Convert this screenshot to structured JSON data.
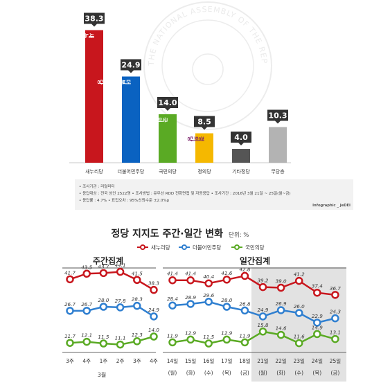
{
  "chart_data": [
    {
      "type": "bar",
      "categories": [
        "새누리당",
        "더불어민주당",
        "국민의당",
        "정의당",
        "기타정당",
        "무당층"
      ],
      "values": [
        38.3,
        24.9,
        14.0,
        8.5,
        4.0,
        10.3
      ],
      "value_labels": [
        "38.3",
        "24.9",
        "14.0",
        "8.5",
        "4.0",
        "10.3"
      ],
      "colors": [
        "#c8161d",
        "#0a62c1",
        "#5aaa24",
        "#f5b800",
        "#555555",
        "#b3b3b3"
      ],
      "logo_text": [
        "새누리당",
        "더불어민주당",
        "국민의당",
        "정의당"
      ],
      "ylim": [
        0,
        40
      ]
    },
    {
      "type": "line",
      "subtitle": "주간집계",
      "categories": [
        "3주",
        "4주",
        "1주",
        "2주",
        "3주",
        "4주"
      ],
      "month_label": "3월",
      "series": [
        {
          "name": "새누리당",
          "color": "#c8161d",
          "values": [
            41.7,
            43.5,
            43.7,
            44.1,
            41.5,
            38.3
          ]
        },
        {
          "name": "더불어민주당",
          "color": "#2f7fd0",
          "values": [
            26.7,
            26.7,
            28.0,
            27.8,
            28.3,
            24.9
          ]
        },
        {
          "name": "국민의당",
          "color": "#5aaa24",
          "values": [
            11.7,
            12.1,
            11.5,
            11.1,
            12.3,
            14.0
          ]
        }
      ]
    },
    {
      "type": "line",
      "subtitle": "일간집계",
      "categories": [
        "14일",
        "15일",
        "16일",
        "17일",
        "18일",
        "21일",
        "22일",
        "23일",
        "24일",
        "25일"
      ],
      "weekdays": [
        "(월)",
        "(화)",
        "(수)",
        "(목)",
        "(금)",
        "(월)",
        "(화)",
        "(수)",
        "(목)",
        "(금)"
      ],
      "series": [
        {
          "name": "새누리당",
          "color": "#c8161d",
          "values": [
            41.4,
            41.4,
            40.4,
            41.6,
            42.8,
            39.2,
            39.0,
            41.2,
            37.4,
            36.7
          ]
        },
        {
          "name": "더불어민주당",
          "color": "#2f7fd0",
          "values": [
            28.4,
            28.9,
            29.6,
            28.0,
            26.8,
            24.9,
            26.9,
            26.0,
            22.9,
            24.3
          ]
        },
        {
          "name": "국민의당",
          "color": "#5aaa24",
          "values": [
            11.9,
            12.9,
            11.5,
            12.9,
            11.9,
            15.8,
            14.6,
            11.6,
            14.9,
            13.1
          ]
        }
      ]
    }
  ],
  "notes": {
    "line1": "• 조사기관 : 리얼미터",
    "line2": "• 응답대상 : 전국 성인 2522명  • 조사방법 : 유무선 RDD 전화면접 및 자동응답  • 조사기간 : 2016년 3월 21일 ~ 25일(월~금)",
    "line3": "• 응답률 : 4.7%  • 표집오차 : 95%신뢰수준 ±2.0%p",
    "credit": "Infographic _ JeDEI"
  },
  "trend": {
    "title": "정당 지지도 주간·일간 변화",
    "unit": "단위: %",
    "legend": [
      "새누리당",
      "더불어민주당",
      "국민의당"
    ]
  },
  "seal_text": "THE NATIONAL ASSEMBLY OF THE REPUBLIC OF KOREA"
}
